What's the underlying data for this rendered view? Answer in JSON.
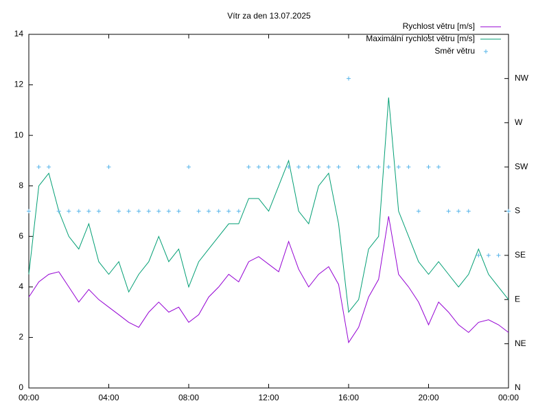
{
  "chart_data": {
    "type": "line",
    "title": "Vítr za den 13.07.2025",
    "x": [
      0,
      30,
      60,
      90,
      120,
      150,
      180,
      210,
      240,
      270,
      300,
      330,
      360,
      390,
      420,
      450,
      480,
      510,
      540,
      570,
      600,
      630,
      660,
      690,
      720,
      750,
      780,
      810,
      840,
      870,
      900,
      930,
      960,
      990,
      1020,
      1050,
      1080,
      1110,
      1140,
      1170,
      1200,
      1230,
      1260,
      1290,
      1320,
      1350,
      1380,
      1410,
      1440
    ],
    "xlim": [
      0,
      1440
    ],
    "xticks": [
      {
        "value": 0,
        "label": "00:00"
      },
      {
        "value": 240,
        "label": "04:00"
      },
      {
        "value": 480,
        "label": "08:00"
      },
      {
        "value": 720,
        "label": "12:00"
      },
      {
        "value": 960,
        "label": "16:00"
      },
      {
        "value": 1200,
        "label": "20:00"
      },
      {
        "value": 1440,
        "label": "00:00"
      }
    ],
    "ylim": [
      0,
      14
    ],
    "yticks": [
      0,
      2,
      4,
      6,
      8,
      10,
      12,
      14
    ],
    "y2lim": [
      0,
      360
    ],
    "y2ticks": [
      {
        "value": 0,
        "label": "N"
      },
      {
        "value": 45,
        "label": "NE"
      },
      {
        "value": 90,
        "label": "E"
      },
      {
        "value": 135,
        "label": "SE"
      },
      {
        "value": 180,
        "label": "S"
      },
      {
        "value": 225,
        "label": "SW"
      },
      {
        "value": 270,
        "label": "W"
      },
      {
        "value": 315,
        "label": "NW"
      }
    ],
    "legend": "top-right",
    "series": [
      {
        "name": "Rychlost větru [m/s]",
        "color": "#9400d3",
        "style": "line",
        "values": [
          3.6,
          4.2,
          4.5,
          4.6,
          4.0,
          3.4,
          3.9,
          3.5,
          3.2,
          2.9,
          2.6,
          2.4,
          3.0,
          3.4,
          3.0,
          3.2,
          2.6,
          2.9,
          3.6,
          4.0,
          4.5,
          4.2,
          5.0,
          5.2,
          4.9,
          4.6,
          5.8,
          4.7,
          4.0,
          4.5,
          4.8,
          4.1,
          1.8,
          2.4,
          3.6,
          4.3,
          6.8,
          4.5,
          4.0,
          3.4,
          2.5,
          3.4,
          3.0,
          2.5,
          2.2,
          2.6,
          2.7,
          2.5,
          2.2
        ]
      },
      {
        "name": "Maximální rychlost větru [m/s]",
        "color": "#009e73",
        "style": "line",
        "values": [
          4.5,
          8.0,
          8.5,
          7.0,
          6.0,
          5.5,
          6.5,
          5.0,
          4.5,
          5.0,
          3.8,
          4.5,
          5.0,
          6.0,
          5.0,
          5.5,
          4.0,
          5.0,
          5.5,
          6.0,
          6.5,
          6.5,
          7.5,
          7.5,
          7.0,
          8.0,
          9.0,
          7.0,
          6.5,
          8.0,
          8.5,
          6.5,
          3.0,
          3.5,
          5.5,
          6.0,
          11.5,
          7.0,
          6.0,
          5.0,
          4.5,
          5.0,
          4.5,
          4.0,
          4.5,
          5.5,
          4.5,
          4.0,
          3.5
        ]
      },
      {
        "name": "Směr větru",
        "color": "#56b4e9",
        "style": "points",
        "axis": "y2",
        "values": [
          180,
          225,
          225,
          180,
          180,
          180,
          180,
          180,
          225,
          180,
          180,
          180,
          180,
          180,
          180,
          180,
          225,
          180,
          180,
          180,
          180,
          180,
          225,
          225,
          225,
          225,
          225,
          225,
          225,
          225,
          225,
          225,
          315,
          225,
          225,
          225,
          225,
          225,
          225,
          180,
          225,
          225,
          180,
          180,
          180,
          135,
          135,
          135,
          180
        ]
      }
    ]
  }
}
